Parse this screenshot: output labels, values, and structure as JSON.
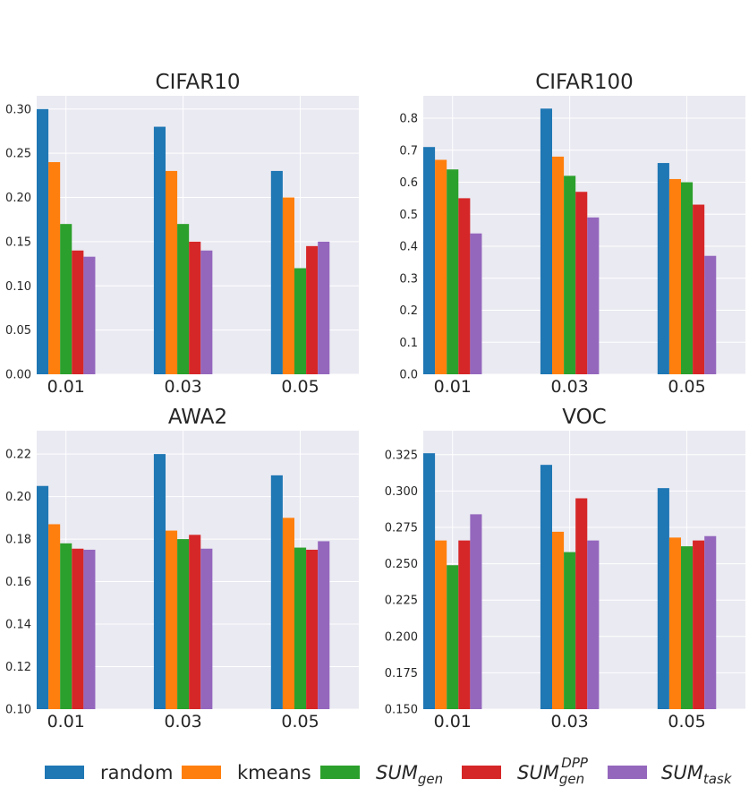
{
  "chart_data": [
    {
      "type": "bar",
      "title": "CIFAR10",
      "categories": [
        "0.01",
        "0.03",
        "0.05"
      ],
      "ylim": [
        0.0,
        0.315
      ],
      "yticks": [
        "0.00",
        "0.05",
        "0.10",
        "0.15",
        "0.20",
        "0.25",
        "0.30"
      ],
      "series": [
        {
          "values": [
            0.3,
            0.28,
            0.23
          ]
        },
        {
          "values": [
            0.24,
            0.23,
            0.2
          ]
        },
        {
          "values": [
            0.17,
            0.17,
            0.12
          ]
        },
        {
          "values": [
            0.14,
            0.15,
            0.145
          ]
        },
        {
          "values": [
            0.133,
            0.14,
            0.15
          ]
        }
      ]
    },
    {
      "type": "bar",
      "title": "CIFAR100",
      "categories": [
        "0.01",
        "0.03",
        "0.05"
      ],
      "ylim": [
        0.0,
        0.87
      ],
      "yticks": [
        "0.0",
        "0.1",
        "0.2",
        "0.3",
        "0.4",
        "0.5",
        "0.6",
        "0.7",
        "0.8"
      ],
      "series": [
        {
          "values": [
            0.71,
            0.83,
            0.66
          ]
        },
        {
          "values": [
            0.67,
            0.68,
            0.61
          ]
        },
        {
          "values": [
            0.64,
            0.62,
            0.6
          ]
        },
        {
          "values": [
            0.55,
            0.57,
            0.53
          ]
        },
        {
          "values": [
            0.44,
            0.49,
            0.37
          ]
        }
      ]
    },
    {
      "type": "bar",
      "title": "AWA2",
      "categories": [
        "0.01",
        "0.03",
        "0.05"
      ],
      "ylim": [
        0.1,
        0.231
      ],
      "yticks": [
        "0.10",
        "0.12",
        "0.14",
        "0.16",
        "0.18",
        "0.20",
        "0.22"
      ],
      "series": [
        {
          "values": [
            0.205,
            0.22,
            0.21
          ]
        },
        {
          "values": [
            0.187,
            0.184,
            0.19
          ]
        },
        {
          "values": [
            0.178,
            0.18,
            0.176
          ]
        },
        {
          "values": [
            0.1755,
            0.182,
            0.175
          ]
        },
        {
          "values": [
            0.175,
            0.1755,
            0.179
          ]
        }
      ]
    },
    {
      "type": "bar",
      "title": "VOC",
      "categories": [
        "0.01",
        "0.03",
        "0.05"
      ],
      "ylim": [
        0.15,
        0.3415
      ],
      "yticks": [
        "0.150",
        "0.175",
        "0.200",
        "0.225",
        "0.250",
        "0.275",
        "0.300",
        "0.325"
      ],
      "series": [
        {
          "values": [
            0.326,
            0.318,
            0.302
          ]
        },
        {
          "values": [
            0.266,
            0.272,
            0.268
          ]
        },
        {
          "values": [
            0.249,
            0.258,
            0.262
          ]
        },
        {
          "values": [
            0.266,
            0.295,
            0.266
          ]
        },
        {
          "values": [
            0.284,
            0.266,
            0.269
          ]
        }
      ]
    }
  ],
  "legend": {
    "placement": "bottom",
    "entries": [
      {
        "label": "random",
        "base": "random",
        "sub": "",
        "sup": "",
        "color": "#1f77b4"
      },
      {
        "label": "kmeans",
        "base": "kmeans",
        "sub": "",
        "sup": "",
        "color": "#ff7f0e"
      },
      {
        "label": "SUM_gen",
        "base": "SUM",
        "sub": "gen",
        "sup": "",
        "color": "#2ca02c"
      },
      {
        "label": "SUM_gen^DPP",
        "base": "SUM",
        "sub": "gen",
        "sup": "DPP",
        "color": "#d62728"
      },
      {
        "label": "SUM_task",
        "base": "SUM",
        "sub": "task",
        "sup": "",
        "color": "#9467bd"
      }
    ]
  },
  "style": {
    "plot_background": "#eaeaf2",
    "grid_color": "#ffffff",
    "text_color": "#262626"
  }
}
